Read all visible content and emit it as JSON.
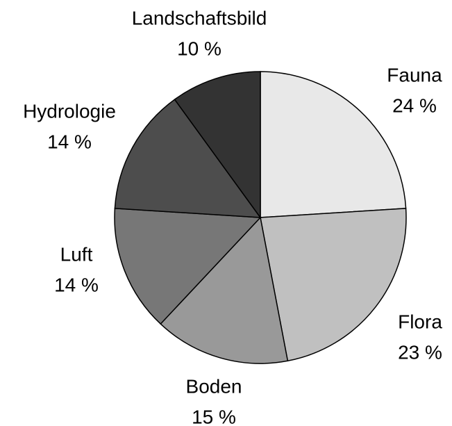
{
  "chart_data": {
    "type": "pie",
    "categories": [
      "Fauna",
      "Flora",
      "Boden",
      "Luft",
      "Hydrologie",
      "Landschaftsbild"
    ],
    "values": [
      24,
      23,
      15,
      14,
      14,
      10
    ],
    "value_labels": [
      "24 %",
      "23 %",
      "15 %",
      "14 %",
      "14 %",
      "10 %"
    ],
    "colors": [
      "#e8e8e8",
      "#c0c0c0",
      "#999999",
      "#777777",
      "#4d4d4d",
      "#333333"
    ]
  }
}
